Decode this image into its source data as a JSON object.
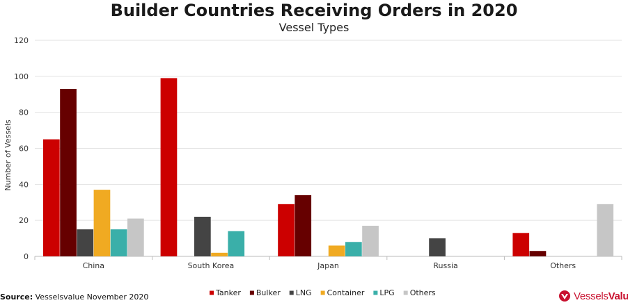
{
  "title": "Builder Countries Receiving Orders in 2020",
  "subtitle": "Vessel Types",
  "source": {
    "label": "Source:",
    "text": "Vesselsvalue November 2020"
  },
  "logo": {
    "part1": "Vessels",
    "part2": "Value",
    "icon": "vesselsvalue-logo-icon",
    "color": "#c8102e"
  },
  "chart_data": {
    "type": "bar",
    "title": "Builder Countries Receiving Orders in 2020",
    "subtitle": "Vessel Types",
    "xlabel": "",
    "ylabel": "Number of Vessels",
    "ylim": [
      0,
      120
    ],
    "yticks": [
      0,
      20,
      40,
      60,
      80,
      100,
      120
    ],
    "grid": true,
    "legend": "bottom",
    "categories": [
      "China",
      "South Korea",
      "Japan",
      "Russia",
      "Others"
    ],
    "series": [
      {
        "name": "Tanker",
        "color": "#cc0000",
        "values": [
          65,
          99,
          29,
          0,
          13
        ]
      },
      {
        "name": "Bulker",
        "color": "#660000",
        "values": [
          93,
          0,
          34,
          0,
          3
        ]
      },
      {
        "name": "LNG",
        "color": "#444444",
        "values": [
          15,
          22,
          0,
          10,
          0
        ]
      },
      {
        "name": "Container",
        "color": "#f0aa22",
        "values": [
          37,
          2,
          6,
          0,
          0
        ]
      },
      {
        "name": "LPG",
        "color": "#3aafa9",
        "values": [
          15,
          14,
          8,
          0,
          0
        ]
      },
      {
        "name": "Others",
        "color": "#c6c6c6",
        "values": [
          21,
          0,
          17,
          0,
          29
        ]
      }
    ]
  }
}
